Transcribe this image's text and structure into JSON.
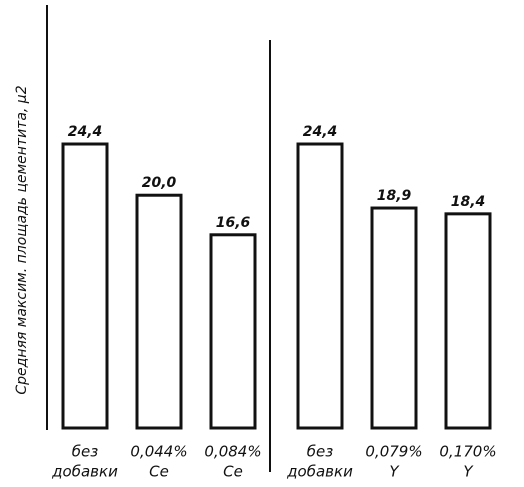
{
  "chart_data": {
    "type": "bar",
    "y_label": "Средняя максим. площадь цементита, μ2",
    "categories": [
      [
        "без",
        "добавки"
      ],
      [
        "0,044%",
        "Ce"
      ],
      [
        "0,084%",
        "Ce"
      ],
      [
        "без",
        "добавки"
      ],
      [
        "0,079%",
        "Y"
      ],
      [
        "0,170%",
        "Y"
      ]
    ],
    "values": [
      24.4,
      20.0,
      16.6,
      24.4,
      18.9,
      18.4
    ],
    "value_labels": [
      "24,4",
      "20,0",
      "16,6",
      "24,4",
      "18,9",
      "18,4"
    ],
    "color": "#ffffff",
    "ylim": [
      0,
      36
    ]
  }
}
